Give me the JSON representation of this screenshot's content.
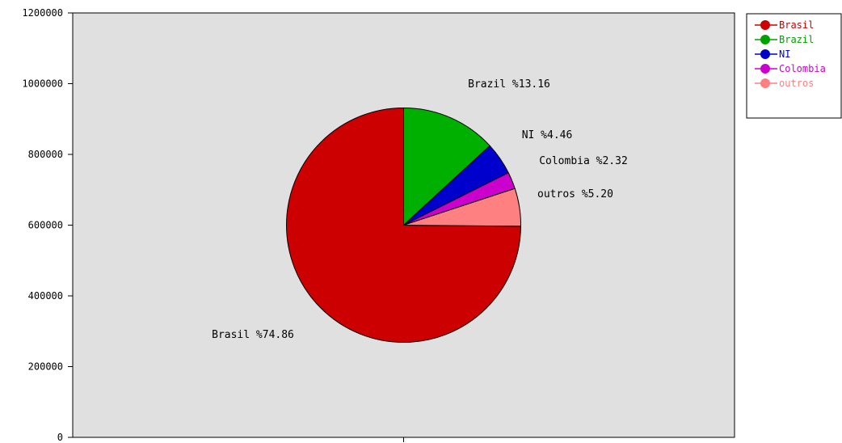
{
  "chart_data": {
    "type": "pie",
    "title": "",
    "xlabel": "",
    "ylabel": "",
    "ylim": [
      0,
      1200000
    ],
    "y_ticks": [
      0,
      200000,
      400000,
      600000,
      800000,
      1000000,
      1200000
    ],
    "y_tick_labels": [
      "0",
      "200000",
      "400000",
      "600000",
      "800000",
      "1000000",
      "1200000"
    ],
    "grid": false,
    "plot_background": "#e0e0e0",
    "legend_position": "top-right",
    "slices": [
      {
        "name": "Brasil",
        "percent": 74.86,
        "label": "Brasil %74.86",
        "color": "#cc0000",
        "legend_color": "#cc0000"
      },
      {
        "name": "Brazil",
        "percent": 13.16,
        "label": "Brazil %13.16",
        "color": "#00b000",
        "legend_color": "#00a000"
      },
      {
        "name": "NI",
        "percent": 4.46,
        "label": "NI %4.46",
        "color": "#0000cc",
        "legend_color": "#0000cc"
      },
      {
        "name": "Colombia",
        "percent": 2.32,
        "label": "Colombia %2.32",
        "color": "#cc00cc",
        "legend_color": "#cc00cc"
      },
      {
        "name": "outros",
        "percent": 5.2,
        "label": "outros %5.20",
        "color": "#ff8080",
        "legend_color": "#ff8080"
      }
    ]
  }
}
